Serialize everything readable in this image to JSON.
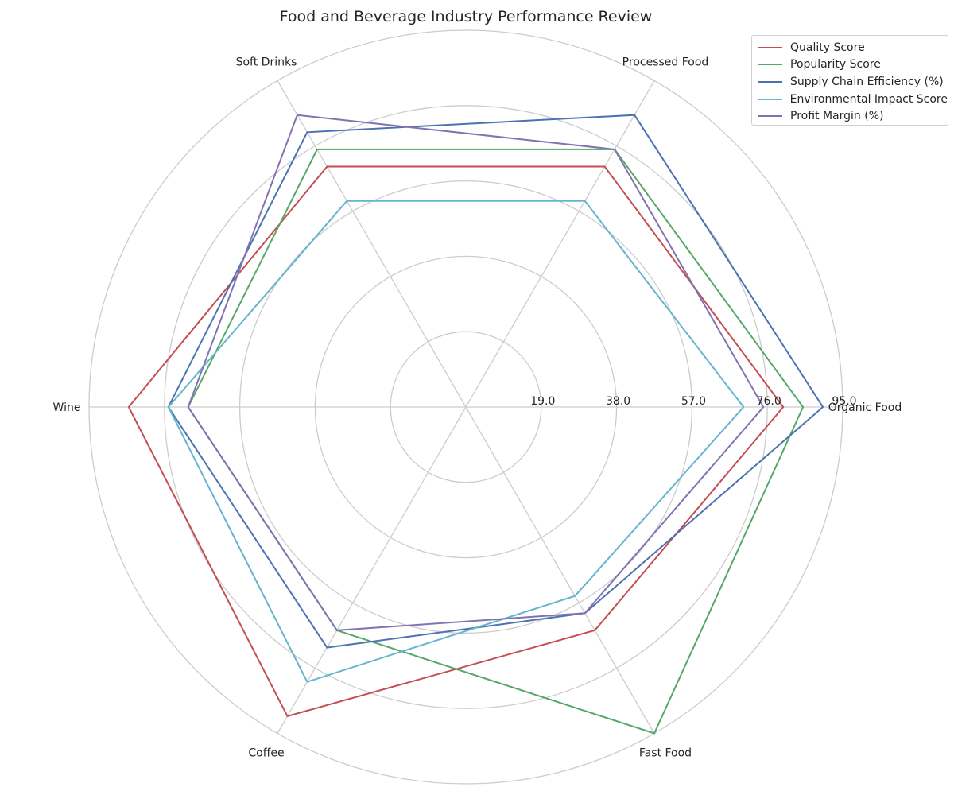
{
  "chart_data": {
    "type": "radar",
    "title": "Food and Beverage Industry Performance Review",
    "categories": [
      "Organic Food",
      "Processed Food",
      "Soft Drinks",
      "Wine",
      "Coffee",
      "Fast Food"
    ],
    "rmax": 95,
    "r_ticks": [
      19.0,
      38.0,
      57.0,
      76.0,
      95.0
    ],
    "r_tick_labels": [
      "19.0",
      "38.0",
      "57.0",
      "76.0",
      "95.0"
    ],
    "grid": true,
    "legend_position": "top-right",
    "series": [
      {
        "name": "Quality Score",
        "color": "#c44e52",
        "values": [
          80,
          70,
          70,
          85,
          90,
          65
        ]
      },
      {
        "name": "Popularity Score",
        "color": "#55a868",
        "values": [
          85,
          75,
          75,
          70,
          65,
          95
        ]
      },
      {
        "name": "Supply Chain Efficiency (%)",
        "color": "#4c72b0",
        "values": [
          90,
          85,
          80,
          75,
          70,
          60
        ]
      },
      {
        "name": "Environmental Impact Score",
        "color": "#64b5cd",
        "values": [
          70,
          60,
          60,
          75,
          80,
          55
        ]
      },
      {
        "name": "Profit Margin (%)",
        "color": "#8172b3",
        "values": [
          75,
          75,
          85,
          70,
          65,
          60
        ]
      }
    ]
  }
}
